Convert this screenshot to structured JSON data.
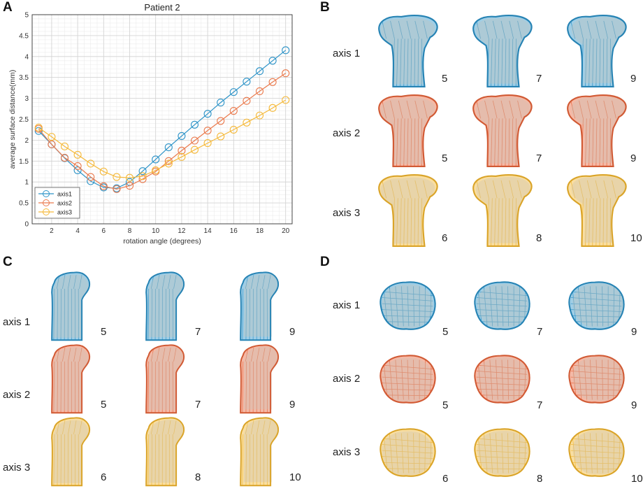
{
  "panels": {
    "A": "A",
    "B": "B",
    "C": "C",
    "D": "D"
  },
  "chart_data": {
    "type": "line",
    "title": "Patient 2",
    "xlabel": "rotation angle (degrees)",
    "ylabel": "average surface distance(mm)",
    "xlim": [
      0.5,
      20.5
    ],
    "ylim": [
      0,
      5
    ],
    "xticks": [
      2,
      4,
      6,
      8,
      10,
      12,
      14,
      16,
      18,
      20
    ],
    "yticks": [
      0,
      0.5,
      1,
      1.5,
      2,
      2.5,
      3,
      3.5,
      4,
      4.5,
      5
    ],
    "grid": true,
    "legend_position": "bottom-left",
    "x": [
      1,
      2,
      3,
      4,
      5,
      6,
      7,
      8,
      9,
      10,
      11,
      12,
      13,
      14,
      15,
      16,
      17,
      18,
      19,
      20
    ],
    "series": [
      {
        "name": "axis1",
        "color": "#2e94c8",
        "values": [
          2.22,
          1.9,
          1.57,
          1.28,
          1.02,
          0.87,
          0.85,
          1.0,
          1.26,
          1.54,
          1.83,
          2.1,
          2.37,
          2.63,
          2.9,
          3.15,
          3.4,
          3.65,
          3.9,
          4.15
        ]
      },
      {
        "name": "axis2",
        "color": "#ea7a4d",
        "values": [
          2.27,
          1.9,
          1.58,
          1.38,
          1.12,
          0.9,
          0.83,
          0.91,
          1.07,
          1.25,
          1.5,
          1.75,
          1.99,
          2.23,
          2.46,
          2.7,
          2.94,
          3.17,
          3.39,
          3.6
        ]
      },
      {
        "name": "axis3",
        "color": "#f5b93a",
        "values": [
          2.3,
          2.08,
          1.85,
          1.65,
          1.44,
          1.25,
          1.12,
          1.1,
          1.14,
          1.28,
          1.44,
          1.6,
          1.77,
          1.93,
          2.09,
          2.25,
          2.42,
          2.59,
          2.77,
          2.96
        ]
      }
    ]
  },
  "panel_b": {
    "rows": [
      {
        "label": "axis 1",
        "values": [
          "5",
          "7",
          "9"
        ],
        "color": "#2a92c8"
      },
      {
        "label": "axis 2",
        "values": [
          "5",
          "7",
          "9"
        ],
        "color": "#e8643a"
      },
      {
        "label": "axis 3",
        "values": [
          "6",
          "8",
          "10"
        ],
        "color": "#f2b62e"
      }
    ]
  },
  "panel_c": {
    "rows": [
      {
        "label": "axis 1",
        "values": [
          "5",
          "7",
          "9"
        ],
        "color": "#2a92c8"
      },
      {
        "label": "axis 2",
        "values": [
          "5",
          "7",
          "9"
        ],
        "color": "#e8643a"
      },
      {
        "label": "axis 3",
        "values": [
          "6",
          "8",
          "10"
        ],
        "color": "#f2b62e"
      }
    ]
  },
  "panel_d": {
    "rows": [
      {
        "label": "axis 1",
        "values": [
          "5",
          "7",
          "9"
        ],
        "color": "#2a92c8"
      },
      {
        "label": "axis 2",
        "values": [
          "5",
          "7",
          "9"
        ],
        "color": "#e8643a"
      },
      {
        "label": "axis 3",
        "values": [
          "6",
          "8",
          "10"
        ],
        "color": "#f2b62e"
      }
    ]
  }
}
